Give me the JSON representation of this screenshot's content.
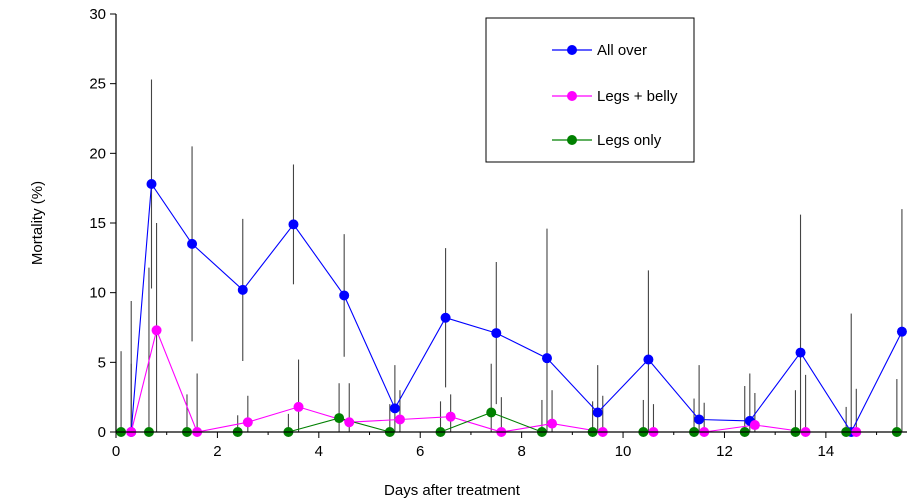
{
  "chart_data": {
    "type": "line",
    "title": "",
    "xlabel": "Days after treatment",
    "ylabel": "Mortality (%)",
    "xlim": [
      0,
      15.6
    ],
    "ylim": [
      0,
      30
    ],
    "xticks": [
      0,
      2,
      4,
      6,
      8,
      10,
      12,
      14
    ],
    "yticks": [
      0,
      5,
      10,
      15,
      20,
      25,
      30
    ],
    "grid": false,
    "legend_position": "top-right",
    "series": [
      {
        "name": "All over",
        "color": "#0000ff",
        "x": [
          0.3,
          0.7,
          1.5,
          2.5,
          3.5,
          4.5,
          5.5,
          6.5,
          7.5,
          8.5,
          9.5,
          10.5,
          11.5,
          12.5,
          13.5,
          14.5,
          15.5
        ],
        "y": [
          0,
          17.8,
          13.5,
          10.2,
          14.9,
          9.8,
          1.7,
          8.2,
          7.1,
          5.3,
          1.4,
          5.2,
          0.9,
          0.8,
          5.7,
          0,
          7.2
        ],
        "err": [
          9.4,
          7.5,
          7.0,
          5.1,
          4.3,
          4.4,
          3.1,
          5.0,
          5.1,
          9.3,
          3.4,
          6.4,
          3.9,
          3.4,
          9.9,
          8.5,
          8.8
        ]
      },
      {
        "name": "Legs + belly",
        "color": "#ff00ff",
        "x": [
          0.3,
          0.8,
          1.6,
          2.6,
          3.6,
          4.6,
          5.6,
          6.6,
          7.6,
          8.6,
          9.6,
          10.6,
          11.6,
          12.6,
          13.6,
          14.6
        ],
        "y": [
          0,
          7.3,
          0,
          0.7,
          1.8,
          0.7,
          0.9,
          1.1,
          0,
          0.6,
          0,
          0,
          0,
          0.5,
          0,
          0
        ],
        "err": [
          4.9,
          7.7,
          4.2,
          1.9,
          3.4,
          2.8,
          2.1,
          1.6,
          2.5,
          2.4,
          2.6,
          2.0,
          2.1,
          2.3,
          4.1,
          3.1
        ]
      },
      {
        "name": "Legs only",
        "color": "#008000",
        "x": [
          0.1,
          0.65,
          1.4,
          2.4,
          3.4,
          4.4,
          5.4,
          6.4,
          7.4,
          8.4,
          9.4,
          10.4,
          11.4,
          12.4,
          13.4,
          14.4,
          15.4
        ],
        "y": [
          0,
          0,
          0,
          0,
          0,
          1.0,
          0,
          0,
          1.4,
          0,
          0,
          0,
          0,
          0,
          0,
          0,
          0
        ],
        "err": [
          5.8,
          11.8,
          2.7,
          1.2,
          1.3,
          2.5,
          2.0,
          2.2,
          3.5,
          2.3,
          2.2,
          2.3,
          2.4,
          3.3,
          3.0,
          1.8,
          3.8
        ]
      }
    ]
  }
}
